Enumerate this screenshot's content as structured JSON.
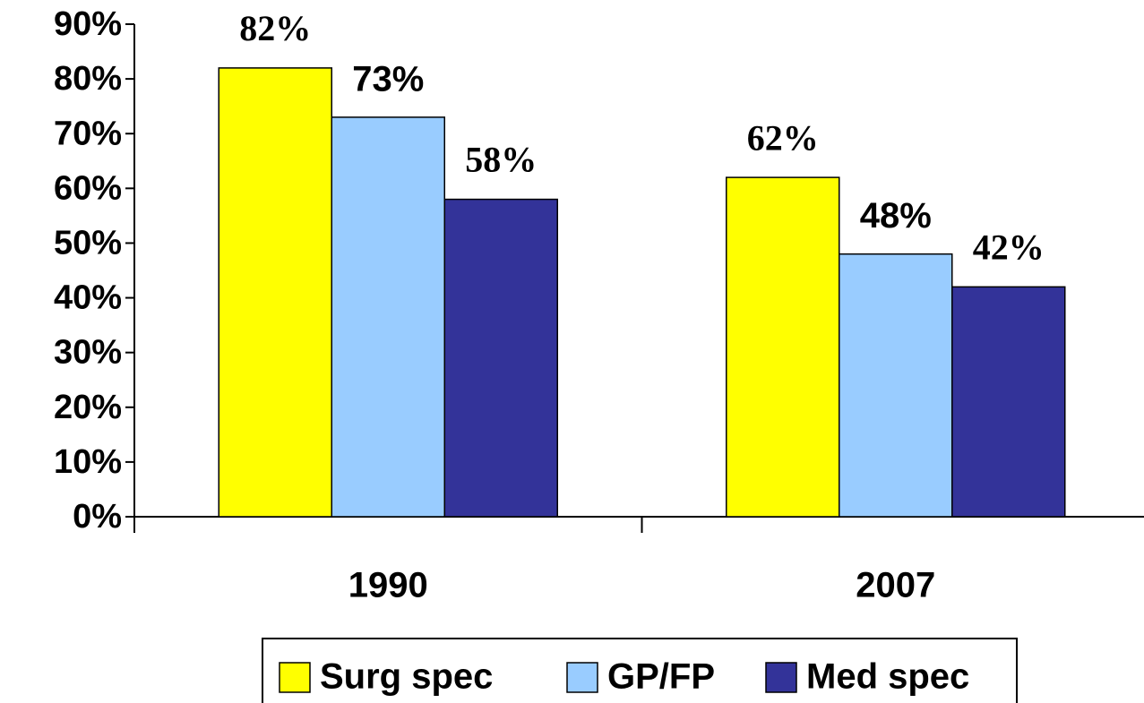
{
  "chart_data": {
    "type": "bar",
    "categories": [
      "1990",
      "2007"
    ],
    "series": [
      {
        "name": "Surg spec",
        "color": "#ffff00",
        "values": [
          82,
          62
        ],
        "value_labels": [
          "82%",
          "62%"
        ]
      },
      {
        "name": "GP/FP",
        "color": "#99ccff",
        "values": [
          73,
          48
        ],
        "value_labels": [
          "73%",
          "48%"
        ]
      },
      {
        "name": "Med spec",
        "color": "#333399",
        "values": [
          58,
          42
        ],
        "value_labels": [
          "58%",
          "42%"
        ]
      }
    ],
    "ylim": [
      0,
      90
    ],
    "yticks": [
      {
        "value": 0,
        "label": "0%"
      },
      {
        "value": 10,
        "label": "10%"
      },
      {
        "value": 20,
        "label": "20%"
      },
      {
        "value": 30,
        "label": "30%"
      },
      {
        "value": 40,
        "label": "40%"
      },
      {
        "value": 50,
        "label": "50%"
      },
      {
        "value": 60,
        "label": "60%"
      },
      {
        "value": 70,
        "label": "70%"
      },
      {
        "value": 80,
        "label": "80%"
      },
      {
        "value": 90,
        "label": "90%"
      }
    ],
    "grid": false,
    "legend": "bottom"
  }
}
